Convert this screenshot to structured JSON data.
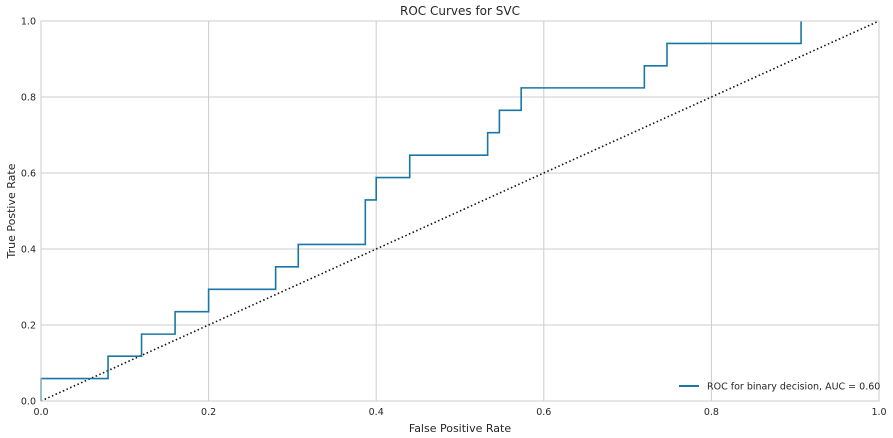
{
  "chart_data": {
    "type": "line",
    "title": "ROC Curves for SVC",
    "xlabel": "False Positive Rate",
    "ylabel": "True Postive Rate",
    "xlim": [
      0,
      1
    ],
    "ylim": [
      0,
      1
    ],
    "grid": true,
    "legend_position": "bottom-right",
    "x_ticks": [
      "0.0",
      "0.2",
      "0.4",
      "0.6",
      "0.8",
      "1.0"
    ],
    "y_ticks": [
      "0.0",
      "0.2",
      "0.4",
      "0.6",
      "0.8",
      "1.0"
    ],
    "series": [
      {
        "name": "ROC for binary decision, AUC = 0.60",
        "color": "#1a77a5",
        "style": "step",
        "x": [
          0.0,
          0.0,
          0.08,
          0.08,
          0.12,
          0.12,
          0.16,
          0.16,
          0.2,
          0.2,
          0.28,
          0.28,
          0.307,
          0.307,
          0.387,
          0.387,
          0.4,
          0.4,
          0.44,
          0.44,
          0.533,
          0.533,
          0.547,
          0.547,
          0.573,
          0.573,
          0.72,
          0.72,
          0.747,
          0.747,
          0.907,
          0.907
        ],
        "y": [
          0.0,
          0.059,
          0.059,
          0.118,
          0.118,
          0.176,
          0.176,
          0.235,
          0.235,
          0.294,
          0.294,
          0.353,
          0.353,
          0.412,
          0.412,
          0.529,
          0.529,
          0.588,
          0.588,
          0.647,
          0.647,
          0.706,
          0.706,
          0.765,
          0.765,
          0.824,
          0.824,
          0.882,
          0.882,
          0.941,
          0.941,
          1.0
        ]
      }
    ],
    "reference_line": {
      "x": [
        0,
        1
      ],
      "y": [
        0,
        1
      ],
      "color": "#111111",
      "style": "dotted"
    }
  }
}
